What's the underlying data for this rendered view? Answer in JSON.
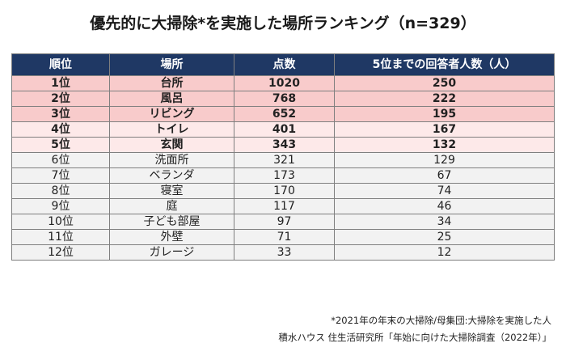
{
  "title": "優先的に大掃除*を実施した場所ランキング（n=329）",
  "columns": [
    "順位",
    "場所",
    "点数",
    "5位までの回答者人数（人）"
  ],
  "rows": [
    {
      "rank": "1位",
      "place": "台所",
      "score": "1020",
      "respondents": "250"
    },
    {
      "rank": "2位",
      "place": "風呂",
      "score": "768",
      "respondents": "222"
    },
    {
      "rank": "3位",
      "place": "リビング",
      "score": "652",
      "respondents": "195"
    },
    {
      "rank": "4位",
      "place": "トイレ",
      "score": "401",
      "respondents": "167"
    },
    {
      "rank": "5位",
      "place": "玄関",
      "score": "343",
      "respondents": "132"
    },
    {
      "rank": "6位",
      "place": "洗面所",
      "score": "321",
      "respondents": "129"
    },
    {
      "rank": "7位",
      "place": "ベランダ",
      "score": "173",
      "respondents": "67"
    },
    {
      "rank": "8位",
      "place": "寝室",
      "score": "170",
      "respondents": "74"
    },
    {
      "rank": "9位",
      "place": "庭",
      "score": "117",
      "respondents": "46"
    },
    {
      "rank": "10位",
      "place": "子ども部屋",
      "score": "97",
      "respondents": "34"
    },
    {
      "rank": "11位",
      "place": "外壁",
      "score": "71",
      "respondents": "25"
    },
    {
      "rank": "12位",
      "place": "ガレージ",
      "score": "33",
      "respondents": "12"
    }
  ],
  "footnote": "*2021年の年末の大掃除/母集団:大掃除を実施した人",
  "source": "積水ハウス 住生活研究所「年始に向けた大掃除調査（2022年）」",
  "colors": {
    "header": "#1f3864",
    "top3": "#f8cbcb",
    "top5": "#fde9e9",
    "rest": "#f2f2f2"
  }
}
